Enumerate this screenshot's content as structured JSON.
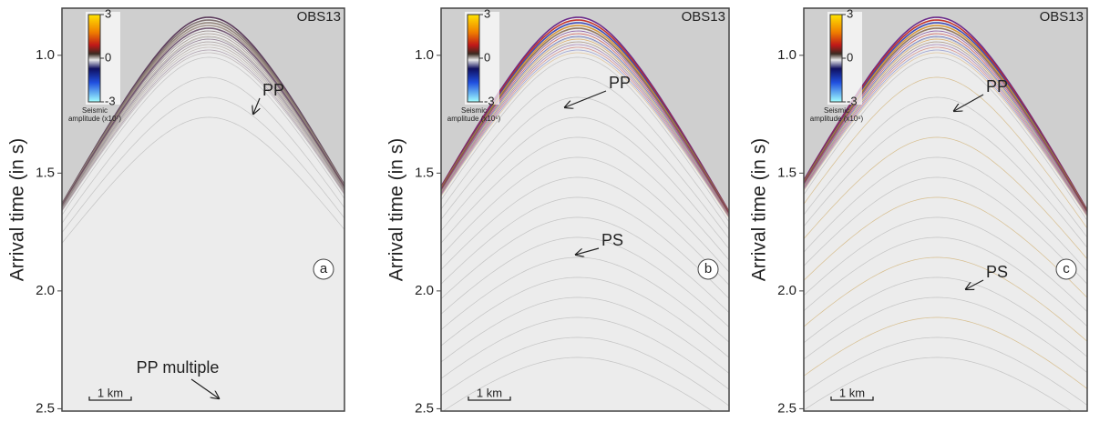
{
  "chart_data": [
    {
      "type": "seismic",
      "station": "OBS13",
      "panel_label": "a",
      "ylabel": "Arrival time (in s)",
      "ylim": [
        0.8,
        2.51
      ],
      "yticks": [
        {
          "value": 1.0,
          "label": "1.0"
        },
        {
          "value": 1.5,
          "label": "1.5"
        },
        {
          "value": 2.0,
          "label": "2.0"
        },
        {
          "value": 2.5,
          "label": "2.5"
        }
      ],
      "colorbar_ticks": [
        3,
        0,
        -3
      ],
      "colorbar_title": "Seismic",
      "colorbar_unit": "amplitude (x10⁷)",
      "scale_bar": "1 km",
      "annotations": [
        "PP",
        "PP multiple"
      ]
    },
    {
      "type": "seismic",
      "station": "OBS13",
      "panel_label": "b",
      "ylabel": "Arrival time (in s)",
      "ylim": [
        0.8,
        2.51
      ],
      "yticks": [
        {
          "value": 1.0,
          "label": "1.0"
        },
        {
          "value": 1.5,
          "label": "1.5"
        },
        {
          "value": 2.0,
          "label": "2.0"
        },
        {
          "value": 2.5,
          "label": "2.5"
        }
      ],
      "colorbar_ticks": [
        3,
        0,
        -3
      ],
      "colorbar_title": "Seismic",
      "colorbar_unit": "amplitude (x10⁶)",
      "scale_bar": "1 km",
      "annotations": [
        "PP",
        "PS"
      ]
    },
    {
      "type": "seismic",
      "station": "OBS13",
      "panel_label": "c",
      "ylabel": "Arrival time (in s)",
      "ylim": [
        0.8,
        2.51
      ],
      "yticks": [
        {
          "value": 1.0,
          "label": "1.0"
        },
        {
          "value": 1.5,
          "label": "1.5"
        },
        {
          "value": 2.0,
          "label": "2.0"
        },
        {
          "value": 2.5,
          "label": "2.5"
        }
      ],
      "colorbar_ticks": [
        3,
        0,
        -3
      ],
      "colorbar_title": "Seismic",
      "colorbar_unit": "amplitude (x10⁶)",
      "scale_bar": "1 km",
      "annotations": [
        "PP",
        "PS"
      ]
    }
  ]
}
